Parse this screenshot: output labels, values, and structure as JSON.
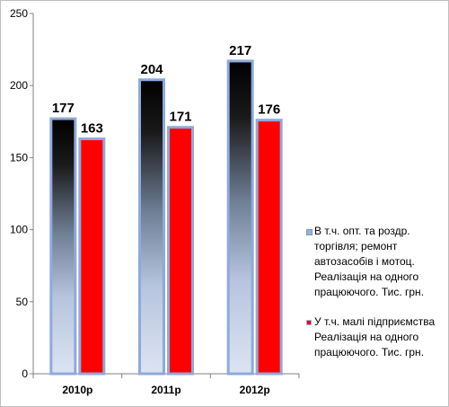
{
  "chart_data": {
    "type": "bar",
    "categories": [
      "2010р",
      "2011р",
      "2012р"
    ],
    "series": [
      {
        "name": "В т.ч. опт. та роздр. торгівля; ремонт автозасобів і мотоц. Реалізація на одного працюючого. Тис. грн.",
        "values": [
          177,
          204,
          217
        ],
        "color": "#000000",
        "border_color": "#8eaadb"
      },
      {
        "name": "У т.ч. малі підприємства Реалізація на одного працюючого. Тис. грн.",
        "values": [
          163,
          171,
          176
        ],
        "color": "#ff0000",
        "border_color": "#8eaadb"
      }
    ],
    "yticks": [
      "0",
      "50",
      "100",
      "150",
      "200",
      "250"
    ],
    "ylim": [
      0,
      250
    ],
    "grid": false,
    "legend_position": "right"
  }
}
